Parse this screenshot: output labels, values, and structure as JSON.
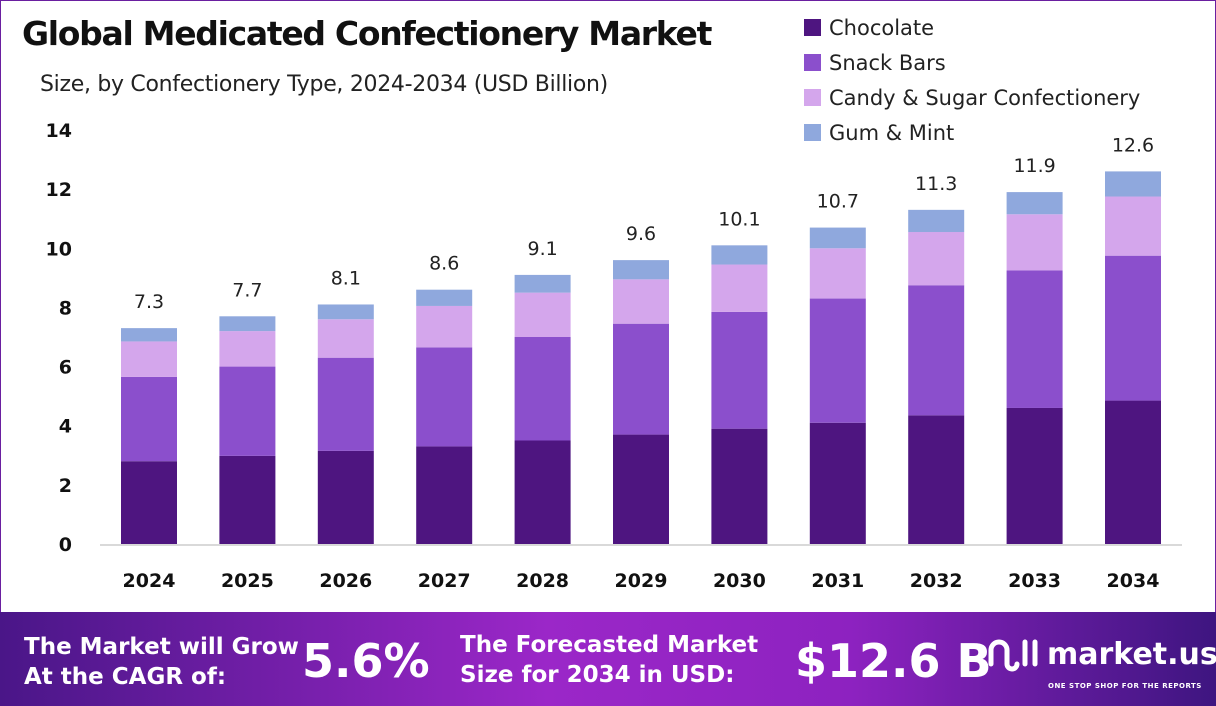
{
  "chart_data": {
    "type": "bar",
    "stacked": true,
    "title": "Global Medicated Confectionery Market",
    "subtitle": "Size, by Confectionery Type, 2024-2034 (USD Billion)",
    "xlabel": "",
    "ylabel": "",
    "ylim": [
      0,
      14
    ],
    "yticks": [
      0,
      2,
      4,
      6,
      8,
      10,
      12,
      14
    ],
    "grid": false,
    "legend_position": "top-right",
    "categories": [
      "2024",
      "2025",
      "2026",
      "2027",
      "2028",
      "2029",
      "2030",
      "2031",
      "2032",
      "2033",
      "2034"
    ],
    "series": [
      {
        "name": "Chocolate",
        "color": "#4e1580",
        "values": [
          2.8,
          2.98,
          3.15,
          3.3,
          3.5,
          3.7,
          3.9,
          4.1,
          4.35,
          4.6,
          4.85
        ]
      },
      {
        "name": "Snack Bars",
        "color": "#8b4fcc",
        "values": [
          2.85,
          3.02,
          3.15,
          3.35,
          3.5,
          3.75,
          3.95,
          4.2,
          4.4,
          4.65,
          4.9
        ]
      },
      {
        "name": "Candy & Sugar Confectionery",
        "color": "#d4a6ec",
        "values": [
          1.2,
          1.2,
          1.3,
          1.4,
          1.5,
          1.5,
          1.6,
          1.7,
          1.8,
          1.9,
          2.0
        ]
      },
      {
        "name": "Gum & Mint",
        "color": "#8fa8dd",
        "values": [
          0.45,
          0.5,
          0.5,
          0.55,
          0.6,
          0.65,
          0.65,
          0.7,
          0.75,
          0.75,
          0.85
        ]
      }
    ],
    "totals": [
      "7.3",
      "7.7",
      "8.1",
      "8.6",
      "9.1",
      "9.6",
      "10.1",
      "10.7",
      "11.3",
      "11.9",
      "12.6"
    ]
  },
  "banner": {
    "cagr_label_1": "The Market will Grow",
    "cagr_label_2": "At the CAGR of:",
    "cagr_value": "5.6%",
    "forecast_label_1": "The Forecasted Market",
    "forecast_label_2": "Size for 2034 in USD:",
    "forecast_value": "$12.6 B",
    "logo_text": "market.us",
    "logo_tagline": "ONE STOP SHOP FOR THE REPORTS"
  }
}
